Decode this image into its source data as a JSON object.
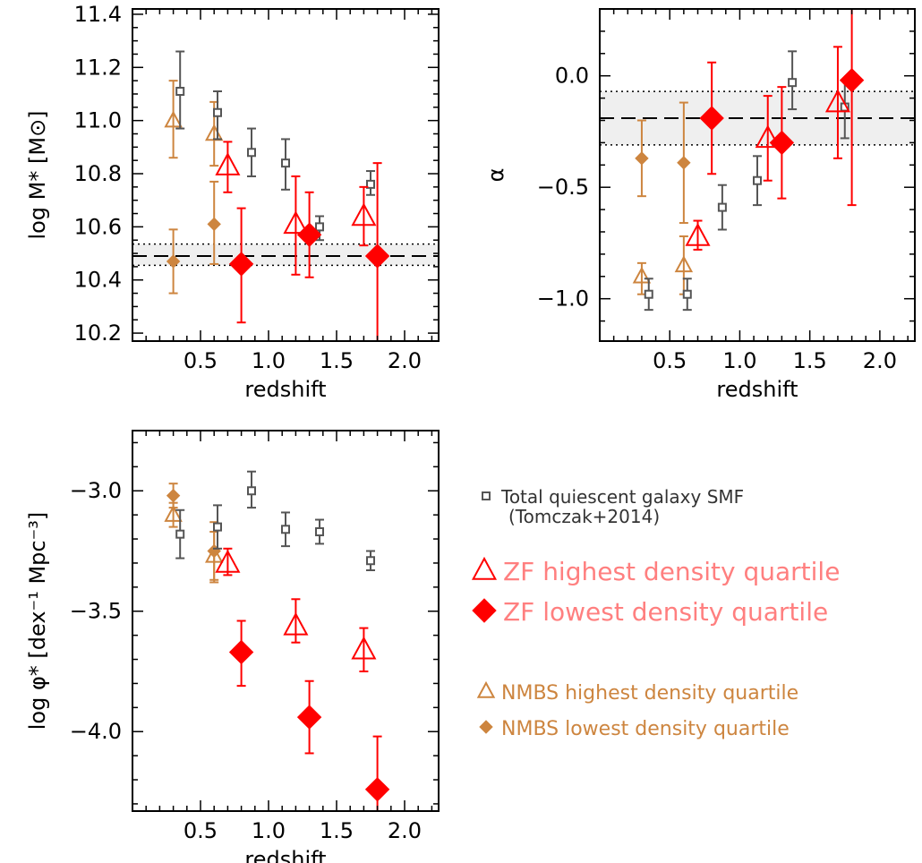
{
  "chart_data": [
    {
      "id": "panel-mass",
      "type": "scatter",
      "xlabel": "redshift",
      "ylabel": "log M* [M⊙]",
      "xlim": [
        0.0,
        2.25
      ],
      "ylim": [
        10.17,
        11.42
      ],
      "xticks": [
        "0.5",
        "1.0",
        "1.5",
        "2.0"
      ],
      "yticks": [
        "10.2",
        "10.4",
        "10.6",
        "10.8",
        "11.0",
        "11.2",
        "11.4"
      ],
      "reference_band": {
        "center": 10.49,
        "low": 10.455,
        "high": 10.535
      },
      "series": [
        {
          "key": "tomczak",
          "points": [
            {
              "x": 0.35,
              "y": 11.11,
              "lo": 10.97,
              "hi": 11.26
            },
            {
              "x": 0.625,
              "y": 11.03,
              "lo": 10.93,
              "hi": 11.11
            },
            {
              "x": 0.875,
              "y": 10.88,
              "lo": 10.79,
              "hi": 10.97
            },
            {
              "x": 1.125,
              "y": 10.84,
              "lo": 10.74,
              "hi": 10.93
            },
            {
              "x": 1.375,
              "y": 10.6,
              "lo": 10.55,
              "hi": 10.64
            },
            {
              "x": 1.75,
              "y": 10.76,
              "lo": 10.72,
              "hi": 10.81
            }
          ]
        },
        {
          "key": "zf_high",
          "points": [
            {
              "x": 0.7,
              "y": 10.83,
              "lo": 10.73,
              "hi": 10.92
            },
            {
              "x": 1.2,
              "y": 10.61,
              "lo": 10.42,
              "hi": 10.79
            },
            {
              "x": 1.7,
              "y": 10.64,
              "lo": 10.53,
              "hi": 10.75
            }
          ]
        },
        {
          "key": "zf_low",
          "points": [
            {
              "x": 0.8,
              "y": 10.46,
              "lo": 10.24,
              "hi": 10.67
            },
            {
              "x": 1.3,
              "y": 10.57,
              "lo": 10.41,
              "hi": 10.73
            },
            {
              "x": 1.8,
              "y": 10.49,
              "lo": 10.17,
              "hi": 10.84
            }
          ]
        },
        {
          "key": "nmbs_high",
          "points": [
            {
              "x": 0.3,
              "y": 11.0,
              "lo": 10.86,
              "hi": 11.15
            },
            {
              "x": 0.6,
              "y": 10.95,
              "lo": 10.83,
              "hi": 11.07
            }
          ]
        },
        {
          "key": "nmbs_low",
          "points": [
            {
              "x": 0.3,
              "y": 10.47,
              "lo": 10.35,
              "hi": 10.59
            },
            {
              "x": 0.6,
              "y": 10.61,
              "lo": 10.46,
              "hi": 10.77
            }
          ]
        }
      ]
    },
    {
      "id": "panel-alpha",
      "type": "scatter",
      "xlabel": "redshift",
      "ylabel": "α",
      "xlim": [
        0.0,
        2.25
      ],
      "ylim": [
        -1.19,
        0.3
      ],
      "xticks": [
        "0.5",
        "1.0",
        "1.5",
        "2.0"
      ],
      "yticks": [
        "−1.0",
        "−0.5",
        "0.0"
      ],
      "reference_band": {
        "center": -0.19,
        "low": -0.31,
        "high": -0.07
      },
      "series": [
        {
          "key": "tomczak",
          "points": [
            {
              "x": 0.35,
              "y": -0.98,
              "lo": -1.05,
              "hi": -0.91
            },
            {
              "x": 0.625,
              "y": -0.98,
              "lo": -1.05,
              "hi": -0.91
            },
            {
              "x": 0.875,
              "y": -0.59,
              "lo": -0.69,
              "hi": -0.49
            },
            {
              "x": 1.125,
              "y": -0.47,
              "lo": -0.58,
              "hi": -0.36
            },
            {
              "x": 1.375,
              "y": -0.03,
              "lo": -0.15,
              "hi": 0.11
            },
            {
              "x": 1.75,
              "y": -0.14,
              "lo": -0.28,
              "hi": -0.02
            }
          ]
        },
        {
          "key": "zf_high",
          "points": [
            {
              "x": 0.7,
              "y": -0.72,
              "lo": -0.78,
              "hi": -0.65
            },
            {
              "x": 1.2,
              "y": -0.28,
              "lo": -0.47,
              "hi": -0.09
            },
            {
              "x": 1.7,
              "y": -0.12,
              "lo": -0.37,
              "hi": 0.13
            }
          ]
        },
        {
          "key": "zf_low",
          "points": [
            {
              "x": 0.8,
              "y": -0.19,
              "lo": -0.44,
              "hi": 0.06
            },
            {
              "x": 1.3,
              "y": -0.3,
              "lo": -0.55,
              "hi": -0.05
            },
            {
              "x": 1.8,
              "y": -0.02,
              "lo": -0.58,
              "hi": 0.3
            }
          ]
        },
        {
          "key": "nmbs_high",
          "points": [
            {
              "x": 0.3,
              "y": -0.9,
              "lo": -0.98,
              "hi": -0.84
            },
            {
              "x": 0.6,
              "y": -0.85,
              "lo": -0.98,
              "hi": -0.72
            }
          ]
        },
        {
          "key": "nmbs_low",
          "points": [
            {
              "x": 0.3,
              "y": -0.37,
              "lo": -0.54,
              "hi": -0.2
            },
            {
              "x": 0.6,
              "y": -0.39,
              "lo": -0.66,
              "hi": -0.12
            }
          ]
        }
      ]
    },
    {
      "id": "panel-phi",
      "type": "scatter",
      "xlabel": "redshift",
      "ylabel": "log φ* [dex⁻¹ Mpc⁻³]",
      "xlim": [
        0.0,
        2.25
      ],
      "ylim": [
        -4.33,
        -2.75
      ],
      "xticks": [
        "0.5",
        "1.0",
        "1.5",
        "2.0"
      ],
      "yticks": [
        "−4.0",
        "−3.5",
        "−3.0"
      ],
      "series": [
        {
          "key": "tomczak",
          "points": [
            {
              "x": 0.35,
              "y": -3.18,
              "lo": -3.28,
              "hi": -3.08
            },
            {
              "x": 0.625,
              "y": -3.15,
              "lo": -3.24,
              "hi": -3.06
            },
            {
              "x": 0.875,
              "y": -3.0,
              "lo": -3.07,
              "hi": -2.92
            },
            {
              "x": 1.125,
              "y": -3.16,
              "lo": -3.23,
              "hi": -3.09
            },
            {
              "x": 1.375,
              "y": -3.17,
              "lo": -3.22,
              "hi": -3.12
            },
            {
              "x": 1.75,
              "y": -3.29,
              "lo": -3.33,
              "hi": -3.25
            }
          ]
        },
        {
          "key": "zf_high",
          "points": [
            {
              "x": 0.7,
              "y": -3.3,
              "lo": -3.35,
              "hi": -3.24
            },
            {
              "x": 1.2,
              "y": -3.56,
              "lo": -3.63,
              "hi": -3.45
            },
            {
              "x": 1.7,
              "y": -3.66,
              "lo": -3.75,
              "hi": -3.57
            }
          ]
        },
        {
          "key": "zf_low",
          "points": [
            {
              "x": 0.8,
              "y": -3.67,
              "lo": -3.81,
              "hi": -3.54
            },
            {
              "x": 1.3,
              "y": -3.94,
              "lo": -4.09,
              "hi": -3.79
            },
            {
              "x": 1.8,
              "y": -4.24,
              "lo": -4.33,
              "hi": -4.02
            }
          ]
        },
        {
          "key": "nmbs_high",
          "points": [
            {
              "x": 0.3,
              "y": -3.1,
              "lo": -3.15,
              "hi": -3.05
            },
            {
              "x": 0.6,
              "y": -3.27,
              "lo": -3.37,
              "hi": -3.17
            }
          ]
        },
        {
          "key": "nmbs_low",
          "points": [
            {
              "x": 0.3,
              "y": -3.02,
              "lo": -3.07,
              "hi": -2.97
            },
            {
              "x": 0.6,
              "y": -3.25,
              "lo": -3.38,
              "hi": -3.13
            }
          ]
        }
      ]
    }
  ],
  "legend": {
    "items": [
      {
        "key": "tomczak",
        "label": "Total quiescent galaxy SMF",
        "sublabel": "(Tomczak+2014)"
      },
      {
        "key": "zf_high",
        "label": "ZF highest density quartile"
      },
      {
        "key": "zf_low",
        "label": "ZF lowest density quartile"
      },
      {
        "key": "nmbs_high",
        "label": "NMBS highest density quartile"
      },
      {
        "key": "nmbs_low",
        "label": "NMBS lowest density quartile"
      }
    ]
  },
  "styles": {
    "tomczak": {
      "marker": "square-open",
      "color": "#555555",
      "text_color": "#333333"
    },
    "zf_high": {
      "marker": "triangle-open",
      "color": "#ff0000",
      "text_color": "#ff7f7f"
    },
    "zf_low": {
      "marker": "diamond-filled",
      "color": "#ff0000",
      "text_color": "#ff7f7f"
    },
    "nmbs_high": {
      "marker": "triangle-open",
      "color": "#cd853f",
      "text_color": "#cd853f"
    },
    "nmbs_low": {
      "marker": "diamond-filled",
      "color": "#cd853f",
      "text_color": "#cd853f"
    }
  }
}
